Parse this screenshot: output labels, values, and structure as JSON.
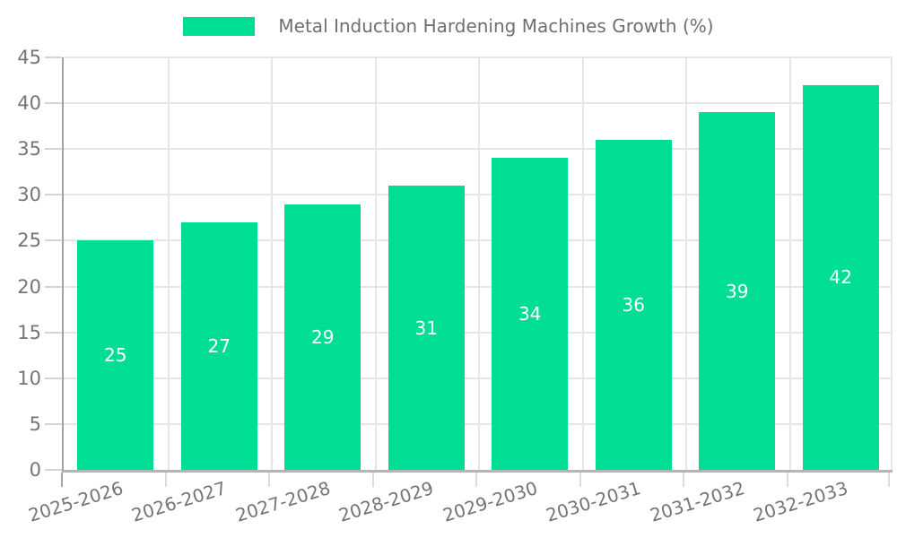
{
  "chart_data": {
    "type": "bar",
    "title": "Metal Induction Hardening Machines Growth (%)",
    "legend_entries": [
      "Metal Induction Hardening Machines Growth (%)"
    ],
    "legend_position": "top",
    "categories": [
      "2025-2026",
      "2026-2027",
      "2027-2028",
      "2028-2029",
      "2029-2030",
      "2030-2031",
      "2031-2032",
      "2032-2033"
    ],
    "values": [
      25,
      27,
      29,
      31,
      34,
      36,
      39,
      42
    ],
    "series": [
      {
        "name": "Metal Induction Hardening Machines Growth (%)",
        "values": [
          25,
          27,
          29,
          31,
          34,
          36,
          39,
          42
        ]
      }
    ],
    "xlabel": "",
    "ylabel": "",
    "ylim": [
      0,
      45
    ],
    "yticks": [
      0,
      5,
      10,
      15,
      20,
      25,
      30,
      35,
      40,
      45
    ],
    "x_tick_rotation_deg": -17,
    "grid": true,
    "value_labels_shown": true,
    "colors": {
      "bar": "#00DE95",
      "value_label": "#ffffff",
      "gridline": "#e6e6e6",
      "axis_line_left": "#a3a3a3",
      "axis_line_bottom": "#b5b5b5",
      "tick_mark": "#d4d4d4",
      "tick_label": "#757575",
      "legend_text": "#6f6f6f",
      "background": "#ffffff"
    }
  }
}
